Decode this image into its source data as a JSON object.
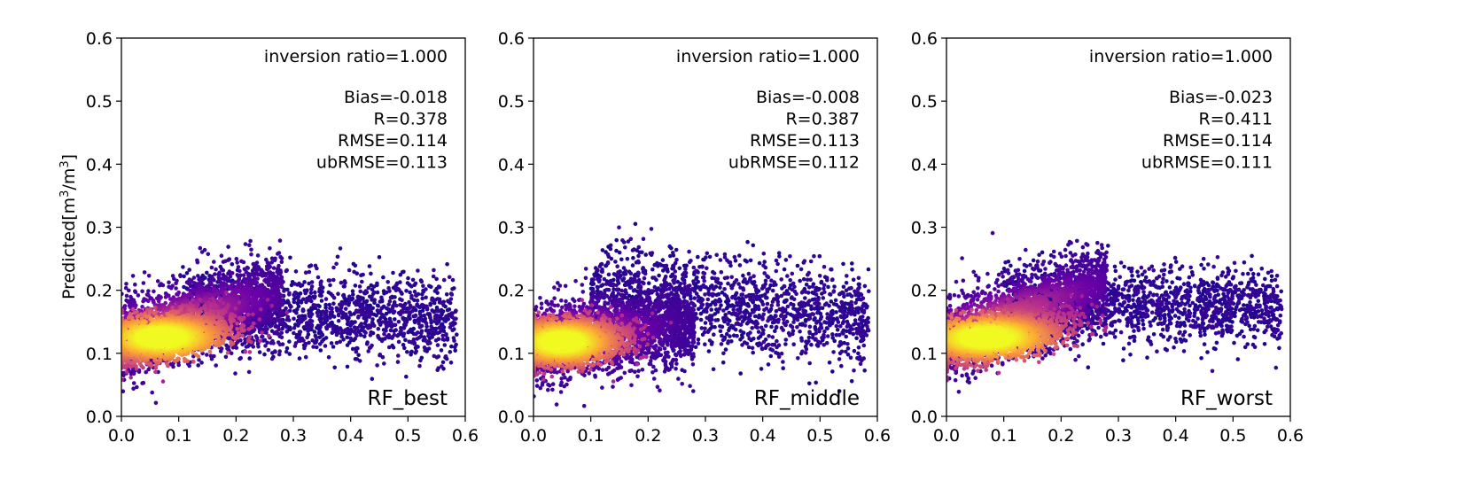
{
  "figure": {
    "ylabel": "Predicted[m³/m³]"
  },
  "chart_data": [
    {
      "type": "scatter",
      "model": "RF_best",
      "inversion_ratio_text": "inversion ratio=1.000",
      "stats": [
        "Bias=-0.018",
        "R=0.378",
        "RMSE=0.114",
        "ubRMSE=0.113"
      ],
      "xlim": [
        0.0,
        0.6
      ],
      "ylim": [
        0.0,
        0.6
      ],
      "xticks": [
        "0.0",
        "0.1",
        "0.2",
        "0.3",
        "0.4",
        "0.5",
        "0.6"
      ],
      "yticks": [
        "0.0",
        "0.1",
        "0.2",
        "0.3",
        "0.4",
        "0.5",
        "0.6"
      ],
      "colormap": [
        "#0d0887",
        "#6a00a8",
        "#b12a90",
        "#e16462",
        "#fca636",
        "#f0f921"
      ],
      "x_max": 0.585,
      "x_core": 0.07,
      "core_width": 0.14,
      "core_slope": 0.25,
      "core_y0": 0.125,
      "tail_center": 0.165,
      "tail_slope": -0.05,
      "tail_sd": 0.04
    },
    {
      "type": "scatter",
      "model": "RF_middle",
      "inversion_ratio_text": "inversion ratio=1.000",
      "stats": [
        "Bias=-0.008",
        "R=0.387",
        "RMSE=0.113",
        "ubRMSE=0.112"
      ],
      "xlim": [
        0.0,
        0.6
      ],
      "ylim": [
        0.0,
        0.6
      ],
      "xticks": [
        "0.0",
        "0.1",
        "0.2",
        "0.3",
        "0.4",
        "0.5",
        "0.6"
      ],
      "yticks": [
        "0.0",
        "0.1",
        "0.2",
        "0.3",
        "0.4",
        "0.5",
        "0.6"
      ],
      "colormap": [
        "#0d0887",
        "#6a00a8",
        "#b12a90",
        "#e16462",
        "#fca636",
        "#f0f921"
      ],
      "x_max": 0.585,
      "x_core": 0.05,
      "core_width": 0.12,
      "core_slope": 0.1,
      "core_y0": 0.118,
      "tail_center": 0.18,
      "tail_slope": -0.08,
      "tail_sd": 0.045
    },
    {
      "type": "scatter",
      "model": "RF_worst",
      "inversion_ratio_text": "inversion ratio=1.000",
      "stats": [
        "Bias=-0.023",
        "R=0.411",
        "RMSE=0.114",
        "ubRMSE=0.111"
      ],
      "xlim": [
        0.0,
        0.6
      ],
      "ylim": [
        0.0,
        0.6
      ],
      "xticks": [
        "0.0",
        "0.1",
        "0.2",
        "0.3",
        "0.4",
        "0.5",
        "0.6"
      ],
      "yticks": [
        "0.0",
        "0.1",
        "0.2",
        "0.3",
        "0.4",
        "0.5",
        "0.6"
      ],
      "colormap": [
        "#0d0887",
        "#6a00a8",
        "#b12a90",
        "#e16462",
        "#fca636",
        "#f0f921"
      ],
      "x_max": 0.585,
      "x_core": 0.07,
      "core_width": 0.15,
      "core_slope": 0.3,
      "core_y0": 0.125,
      "tail_center": 0.18,
      "tail_slope": -0.02,
      "tail_sd": 0.035
    }
  ]
}
